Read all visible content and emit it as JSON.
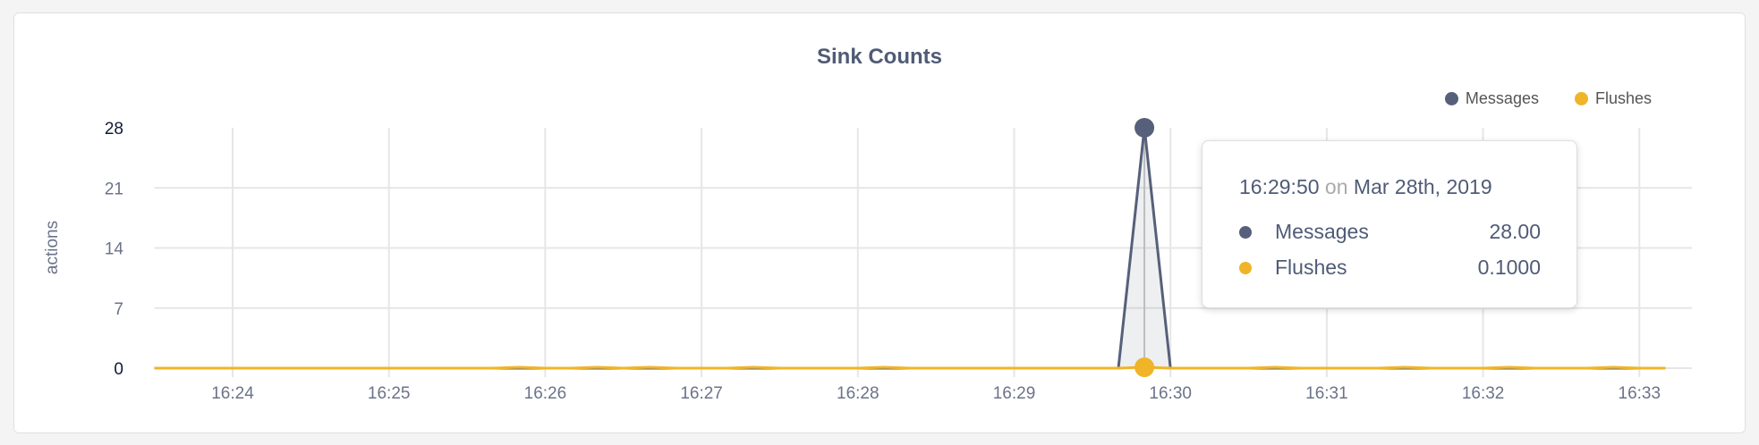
{
  "chart_data": {
    "type": "area",
    "title": "Sink Counts",
    "ylabel": "actions",
    "xlabel": "",
    "ylim": [
      0,
      28
    ],
    "yticks": [
      "0",
      "7",
      "14",
      "21",
      "28"
    ],
    "xticks": [
      "16:24",
      "16:25",
      "16:26",
      "16:27",
      "16:28",
      "16:29",
      "16:30",
      "16:31",
      "16:32",
      "16:33"
    ],
    "xlim": [
      "16:23:30",
      "16:33:10"
    ],
    "grid": true,
    "legend_placement": "top-right",
    "x": [
      "16:23:30",
      "16:23:40",
      "16:23:50",
      "16:24:00",
      "16:24:10",
      "16:24:20",
      "16:24:30",
      "16:24:40",
      "16:24:50",
      "16:25:00",
      "16:25:10",
      "16:25:20",
      "16:25:30",
      "16:25:40",
      "16:25:50",
      "16:26:00",
      "16:26:10",
      "16:26:20",
      "16:26:30",
      "16:26:40",
      "16:26:50",
      "16:27:00",
      "16:27:10",
      "16:27:20",
      "16:27:30",
      "16:27:40",
      "16:27:50",
      "16:28:00",
      "16:28:10",
      "16:28:20",
      "16:28:30",
      "16:28:40",
      "16:28:50",
      "16:29:00",
      "16:29:10",
      "16:29:20",
      "16:29:30",
      "16:29:40",
      "16:29:50",
      "16:30:00",
      "16:30:10",
      "16:30:20",
      "16:30:30",
      "16:30:40",
      "16:30:50",
      "16:31:00",
      "16:31:10",
      "16:31:20",
      "16:31:30",
      "16:31:40",
      "16:31:50",
      "16:32:00",
      "16:32:10",
      "16:32:20",
      "16:32:30",
      "16:32:40",
      "16:32:50",
      "16:33:00",
      "16:33:10"
    ],
    "series": [
      {
        "name": "Messages",
        "color": "#56607a",
        "values": [
          0,
          0,
          0,
          0,
          0,
          0,
          0,
          0,
          0,
          0,
          0,
          0,
          0,
          0,
          0,
          0,
          0,
          0,
          0,
          0,
          0,
          0,
          0,
          0,
          0,
          0,
          0,
          0,
          0,
          0,
          0,
          0,
          0,
          0,
          0,
          0,
          0,
          0,
          28,
          0,
          0,
          0,
          0,
          0,
          0,
          0,
          0,
          0,
          0,
          0,
          0,
          0,
          0,
          0,
          0,
          0,
          0,
          0,
          0
        ]
      },
      {
        "name": "Flushes",
        "color": "#f0b428",
        "values": [
          0,
          0,
          0,
          0,
          0,
          0,
          0,
          0,
          0,
          0,
          0,
          0,
          0,
          0,
          0.1,
          0,
          0,
          0.1,
          0,
          0.1,
          0,
          0,
          0,
          0.1,
          0,
          0,
          0,
          0,
          0.1,
          0,
          0,
          0,
          0,
          0,
          0,
          0,
          0,
          0,
          0.1,
          0,
          0,
          0,
          0,
          0.1,
          0,
          0,
          0,
          0,
          0.1,
          0,
          0,
          0,
          0.1,
          0,
          0,
          0,
          0.1,
          0,
          0
        ]
      }
    ]
  },
  "tooltip": {
    "time": "16:29:50",
    "on": "on",
    "date": "Mar 28th, 2019",
    "rows": [
      {
        "label": "Messages",
        "value": "28.00",
        "color": "#56607a"
      },
      {
        "label": "Flushes",
        "value": "0.1000",
        "color": "#f0b428"
      }
    ]
  }
}
